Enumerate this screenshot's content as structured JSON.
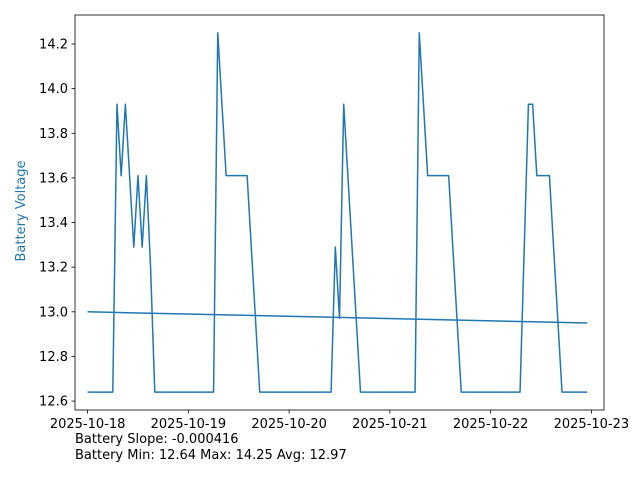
{
  "chart_data": {
    "type": "line",
    "title": "",
    "xlabel": "",
    "ylabel": "Battery Voltage",
    "ylabel_color": "#1f77b4",
    "line_color": "#1f77b4",
    "grid": false,
    "xlim": [
      "2025-10-17T21:00",
      "2025-10-23T03:00"
    ],
    "ylim": [
      12.56,
      14.33
    ],
    "x_ticks": [
      "2025-10-18",
      "2025-10-19",
      "2025-10-20",
      "2025-10-21",
      "2025-10-22",
      "2025-10-23"
    ],
    "y_ticks": [
      12.6,
      12.8,
      13.0,
      13.2,
      13.4,
      13.6,
      13.8,
      14.0,
      14.2
    ],
    "series": [
      {
        "x": [
          "2025-10-18T00:00",
          "2025-10-18T06:00",
          "2025-10-18T07:00",
          "2025-10-18T08:00",
          "2025-10-18T09:00",
          "2025-10-18T11:00",
          "2025-10-18T12:00",
          "2025-10-18T13:00",
          "2025-10-18T14:00",
          "2025-10-18T15:00",
          "2025-10-18T16:00",
          "2025-10-18T17:00",
          "2025-10-19T06:00",
          "2025-10-19T07:00",
          "2025-10-19T09:00",
          "2025-10-19T14:00",
          "2025-10-19T17:00",
          "2025-10-20T10:00",
          "2025-10-20T11:00",
          "2025-10-20T12:00",
          "2025-10-20T13:00",
          "2025-10-20T17:00",
          "2025-10-21T06:00",
          "2025-10-21T07:00",
          "2025-10-21T09:00",
          "2025-10-21T14:00",
          "2025-10-21T17:00",
          "2025-10-22T07:00",
          "2025-10-22T09:00",
          "2025-10-22T10:00",
          "2025-10-22T11:00",
          "2025-10-22T14:00",
          "2025-10-22T17:00",
          "2025-10-22T23:00"
        ],
        "values": [
          12.64,
          12.64,
          13.93,
          13.61,
          13.93,
          13.29,
          13.61,
          13.29,
          13.61,
          13.2,
          12.64,
          12.64,
          12.64,
          14.25,
          13.61,
          13.61,
          12.64,
          12.64,
          13.29,
          12.97,
          13.93,
          12.64,
          12.64,
          14.25,
          13.61,
          13.61,
          12.64,
          12.64,
          13.93,
          13.93,
          13.61,
          13.61,
          12.64,
          12.64
        ]
      },
      {
        "x": [
          "2025-10-18T00:00",
          "2025-10-22T23:00"
        ],
        "values": [
          13.0,
          12.95
        ]
      }
    ]
  },
  "footer": {
    "slope_text": "Battery Slope: -0.000416",
    "stats_text": "Battery Min: 12.64 Max: 14.25 Avg: 12.97"
  }
}
